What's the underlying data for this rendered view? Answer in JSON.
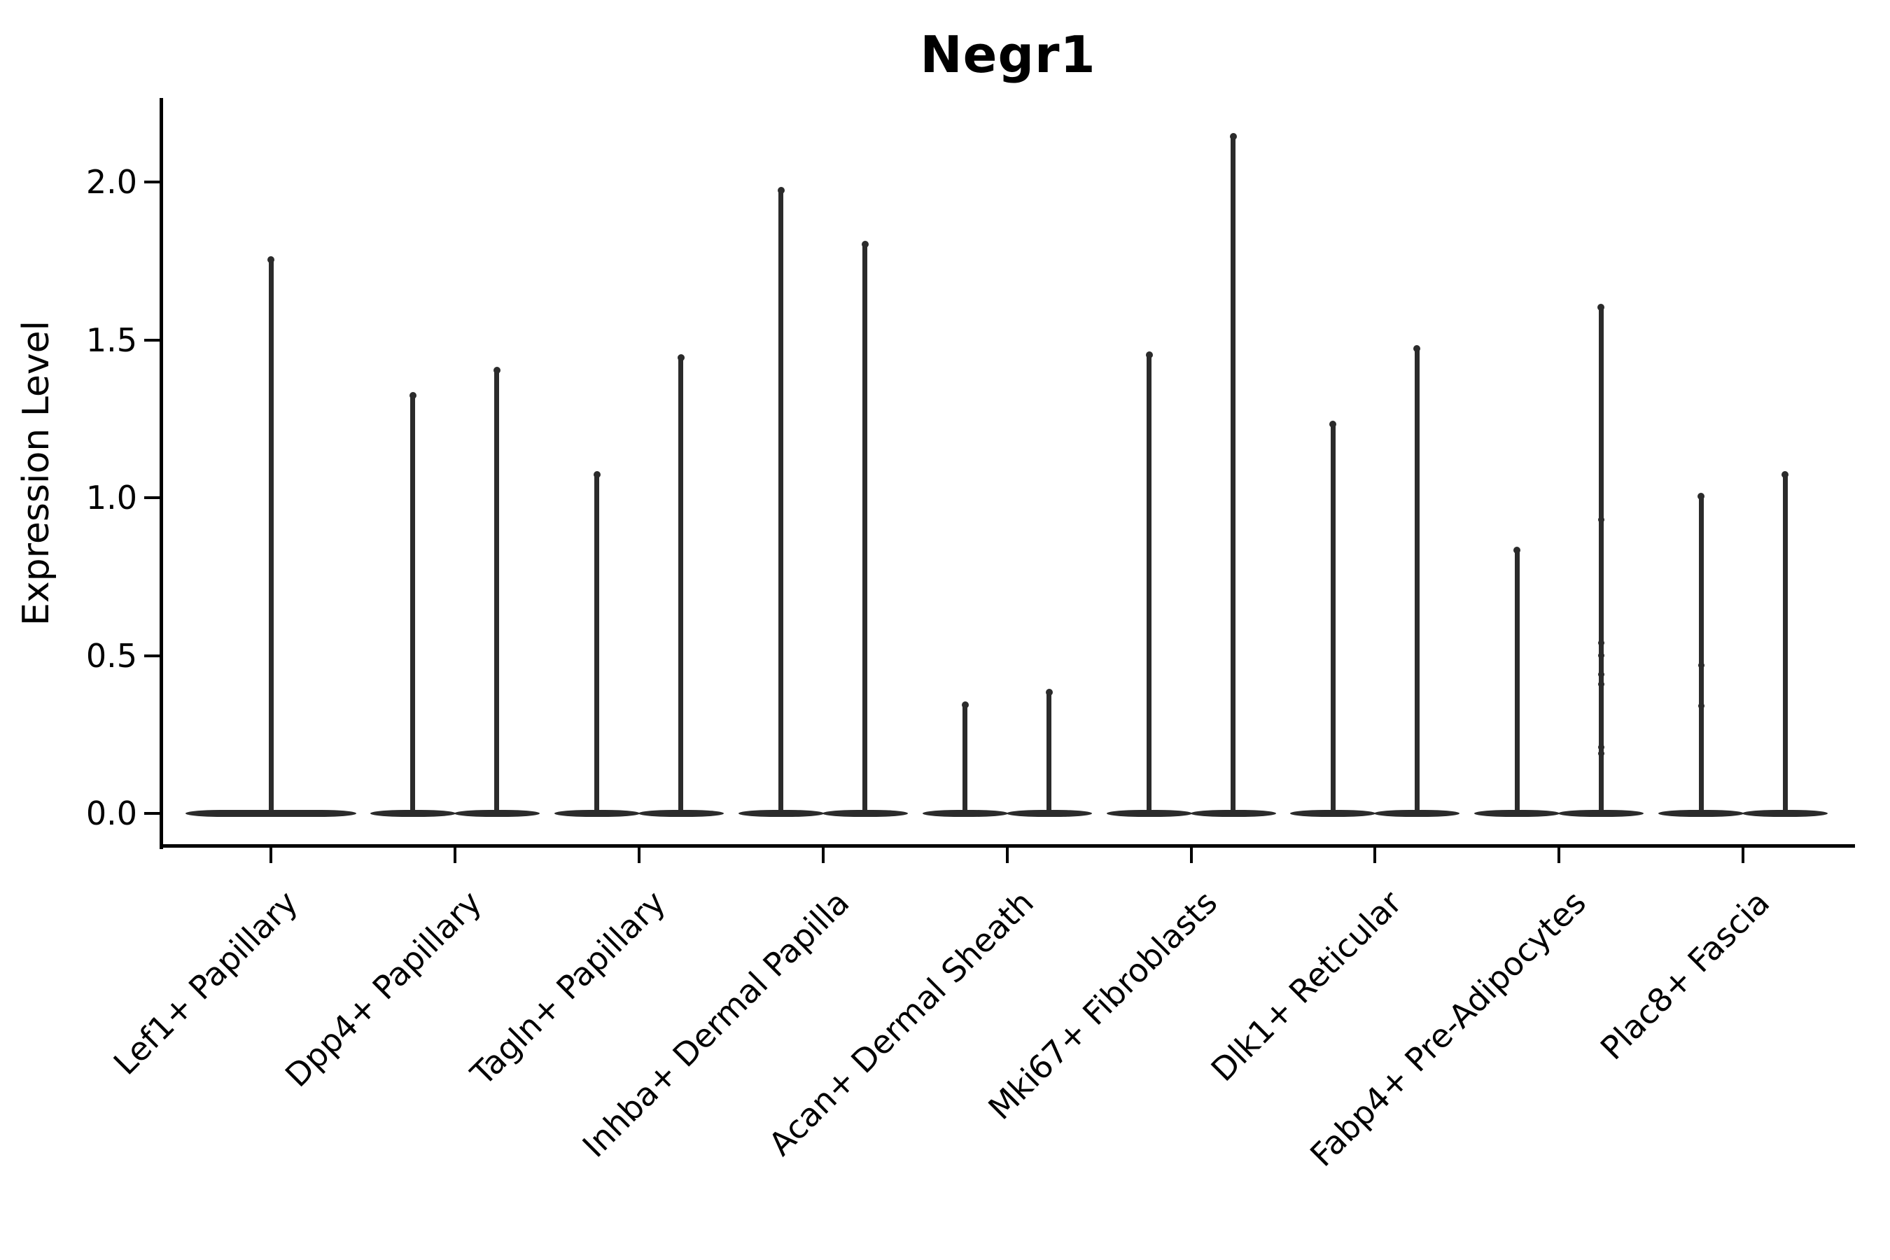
{
  "title": "Negr1",
  "ylabel": "Expression Level",
  "colors": {
    "violin": "#2b2b2b",
    "spine": "#000000",
    "text": "#000000",
    "background": "#ffffff"
  },
  "chart_data": {
    "type": "violin",
    "title": "Negr1",
    "xlabel": "",
    "ylabel": "Expression Level",
    "ylim": [
      -0.11,
      2.27
    ],
    "yticks": [
      "0.0",
      "0.5",
      "1.0",
      "1.5",
      "2.0"
    ],
    "ytick_values": [
      0.0,
      0.5,
      1.0,
      1.5,
      2.0
    ],
    "grid": false,
    "legend": "none",
    "categories": [
      "Lef1+ Papillary",
      "Dpp4+ Papillary",
      "Tagln+ Papillary",
      "Inhba+ Dermal Papilla",
      "Acan+ Dermal Sheath",
      "Mki67+ Fibroblasts",
      "Dlk1+ Reticular",
      "Fabp4+ Pre-Adipocytes",
      "Plac8+ Fascia"
    ],
    "groups": [
      {
        "category": "Lef1+ Papillary",
        "violins": [
          {
            "max": 1.76,
            "span": "full",
            "points": []
          }
        ]
      },
      {
        "category": "Dpp4+ Papillary",
        "violins": [
          {
            "max": 1.33,
            "points": []
          },
          {
            "max": 1.41,
            "points": []
          }
        ]
      },
      {
        "category": "Tagln+ Papillary",
        "violins": [
          {
            "max": 1.08,
            "points": []
          },
          {
            "max": 1.45,
            "points": []
          }
        ]
      },
      {
        "category": "Inhba+ Dermal Papilla",
        "violins": [
          {
            "max": 1.98,
            "points": []
          },
          {
            "max": 1.81,
            "points": []
          }
        ]
      },
      {
        "category": "Acan+ Dermal Sheath",
        "violins": [
          {
            "max": 0.35,
            "points": []
          },
          {
            "max": 0.39,
            "points": []
          }
        ]
      },
      {
        "category": "Mki67+ Fibroblasts",
        "violins": [
          {
            "max": 1.46,
            "points": []
          },
          {
            "max": 2.15,
            "points": []
          }
        ]
      },
      {
        "category": "Dlk1+ Reticular",
        "violins": [
          {
            "max": 1.24,
            "points": []
          },
          {
            "max": 1.48,
            "points": []
          }
        ]
      },
      {
        "category": "Fabp4+ Pre-Adipocytes",
        "violins": [
          {
            "max": 0.84,
            "points": []
          },
          {
            "max": 1.61,
            "points": [
              0.93,
              0.54,
              0.5,
              0.44,
              0.41,
              0.21,
              0.19
            ]
          }
        ]
      },
      {
        "category": "Plac8+ Fascia",
        "violins": [
          {
            "max": 1.01,
            "points": [
              0.47,
              0.34
            ]
          },
          {
            "max": 1.08,
            "points": []
          }
        ]
      }
    ]
  }
}
